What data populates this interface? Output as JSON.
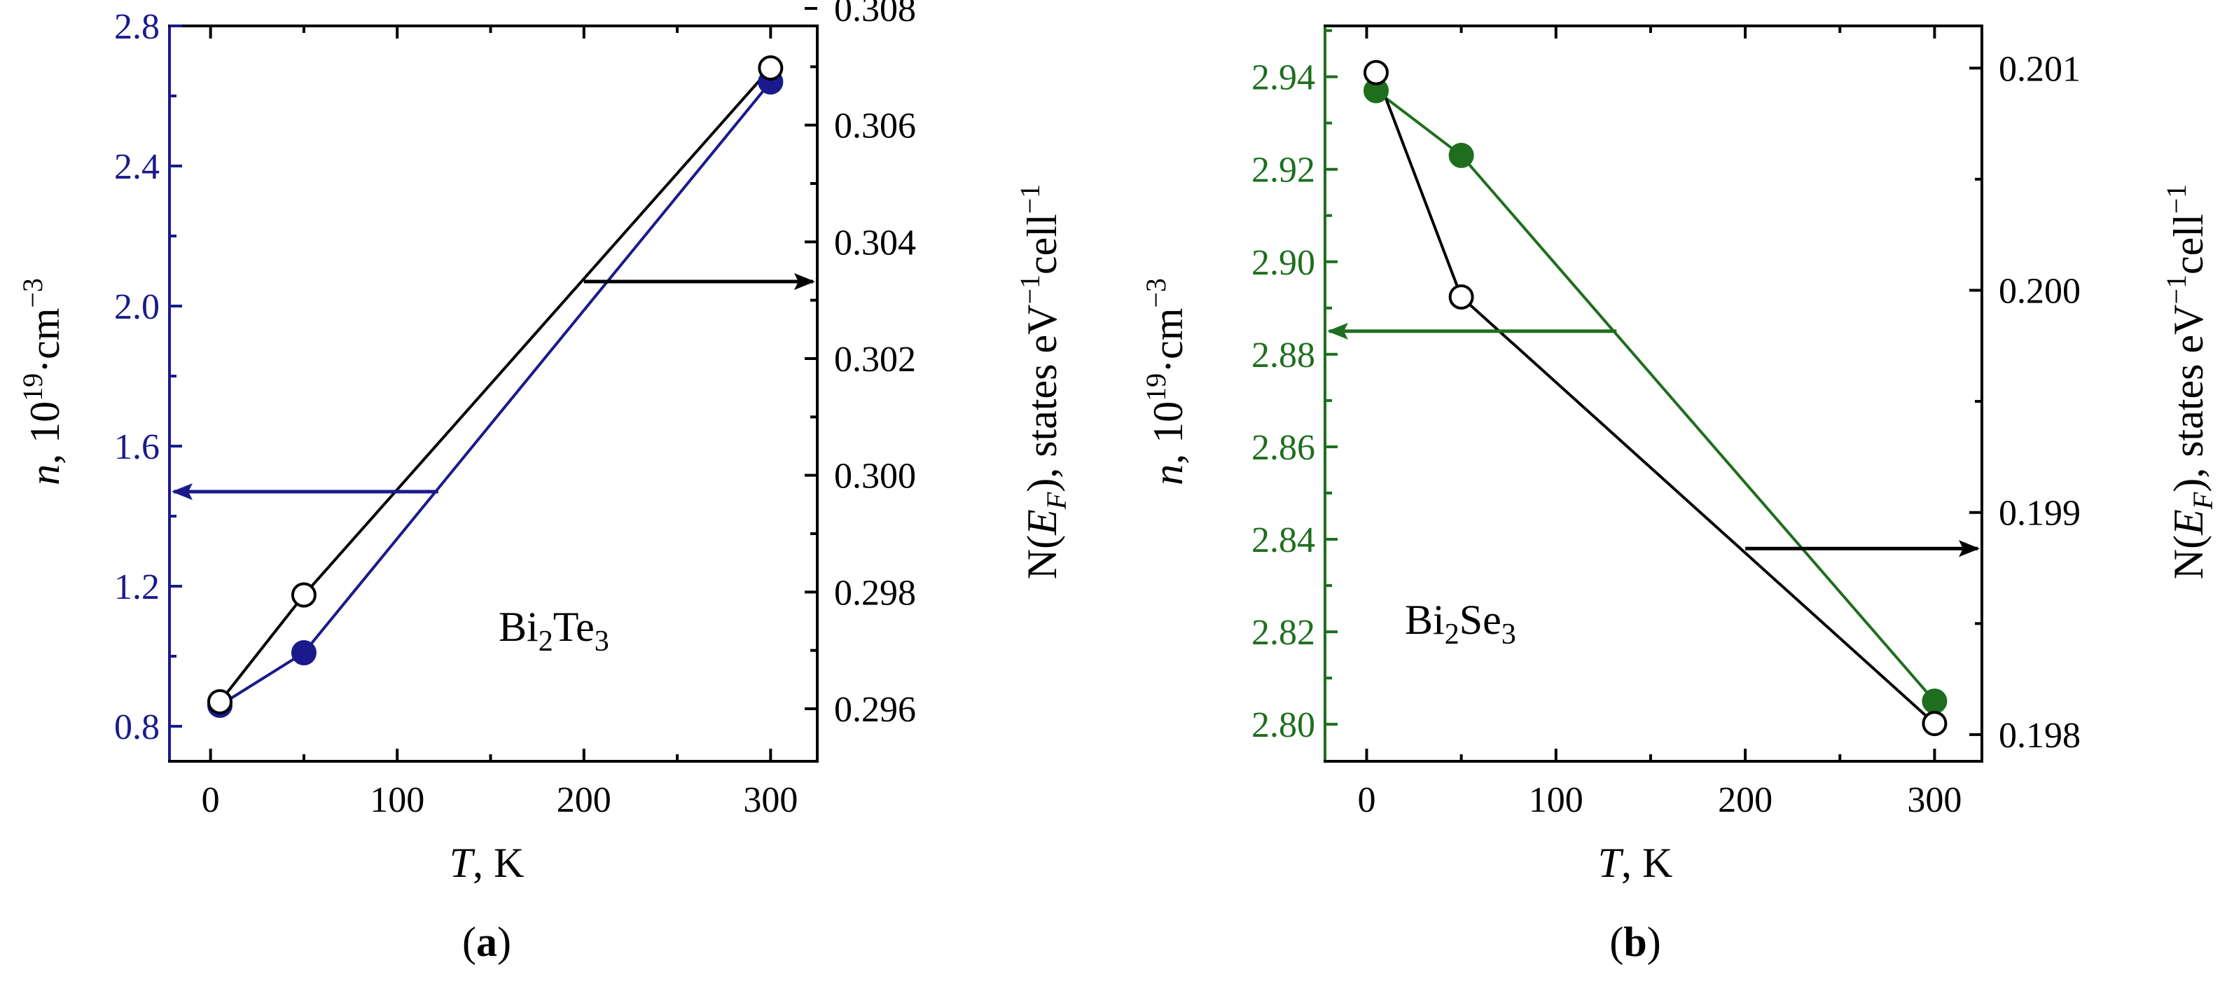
{
  "chart_data": [
    {
      "type": "line",
      "panel_label": "(a)",
      "caption": {
        "open": "(",
        "letter": "a",
        "close": ")"
      },
      "material": {
        "base": "Bi",
        "sub1": "2",
        "mid": "Te",
        "sub2": "3"
      },
      "colors": {
        "left": "#1a1a8c",
        "right": "#000000"
      },
      "x": {
        "label_var": "T",
        "label_unit": ", K",
        "range": [
          -22,
          325
        ],
        "ticks": [
          0,
          100,
          200,
          300
        ],
        "tick_labels": [
          "0",
          "100",
          "200",
          "300"
        ]
      },
      "y_left": {
        "label_var": "n",
        "label_mid": ", 10",
        "label_exp": "19",
        "label_unit": "·cm",
        "label_exp2": "−3",
        "range": [
          0.7,
          2.8
        ],
        "ticks": [
          0.8,
          1.2,
          1.6,
          2.0,
          2.4,
          2.8
        ],
        "tick_labels": [
          "0.8",
          "1.2",
          "1.6",
          "2.0",
          "2.4",
          "2.8"
        ]
      },
      "y_right": {
        "label_a": "N(",
        "label_var": "E",
        "label_sub": "F",
        "label_b": "), states eV",
        "label_exp": "−1",
        "label_c": "cell",
        "label_exp2": "−1",
        "range": [
          0.2951,
          0.3077
        ],
        "ticks": [
          0.296,
          0.298,
          0.3,
          0.302,
          0.304,
          0.306,
          0.308
        ],
        "tick_labels": [
          "0.296",
          "0.298",
          "0.300",
          "0.302",
          "0.304",
          "0.306",
          "0.308"
        ]
      },
      "series": [
        {
          "name": "n (left axis)",
          "axis": "left",
          "marker": "filled",
          "x": [
            5,
            50,
            300
          ],
          "y": [
            0.86,
            1.01,
            2.64
          ]
        },
        {
          "name": "N(E_F) (right axis)",
          "axis": "right",
          "marker": "open",
          "x": [
            5,
            50,
            300
          ],
          "y": [
            0.29612,
            0.29795,
            0.30698
          ]
        }
      ],
      "arrows": [
        {
          "points_to": "left",
          "axis": "left",
          "x_from": 122,
          "y_at": 1.47
        },
        {
          "points_to": "right",
          "axis": "left",
          "x_from": 200,
          "y_at": 2.07
        }
      ]
    },
    {
      "type": "line",
      "panel_label": "(b)",
      "caption": {
        "open": "(",
        "letter": "b",
        "close": ")"
      },
      "material": {
        "base": "Bi",
        "sub1": "2",
        "mid": "Se",
        "sub2": "3"
      },
      "colors": {
        "left": "#1e6e1e",
        "right": "#000000"
      },
      "x": {
        "label_var": "T",
        "label_unit": ", K",
        "range": [
          -22,
          325
        ],
        "ticks": [
          0,
          100,
          200,
          300
        ],
        "tick_labels": [
          "0",
          "100",
          "200",
          "300"
        ]
      },
      "y_left": {
        "label_var": "n",
        "label_mid": ", 10",
        "label_exp": "19",
        "label_unit": "·cm",
        "label_exp2": "−3",
        "range": [
          2.792,
          2.951
        ],
        "ticks": [
          2.8,
          2.82,
          2.84,
          2.86,
          2.88,
          2.9,
          2.92,
          2.94
        ],
        "tick_labels": [
          "2.80",
          "2.82",
          "2.84",
          "2.86",
          "2.88",
          "2.90",
          "2.92",
          "2.94"
        ]
      },
      "y_right": {
        "label_a": "N(",
        "label_var": "E",
        "label_sub": "F",
        "label_b": "), states eV",
        "label_exp": "−1",
        "label_c": "cell",
        "label_exp2": "−1",
        "range": [
          0.19788,
          0.20119
        ],
        "ticks": [
          0.198,
          0.199,
          0.2,
          0.201
        ],
        "tick_labels": [
          "0.198",
          "0.199",
          "0.200",
          "0.201"
        ]
      },
      "series": [
        {
          "name": "n (left axis)",
          "axis": "left",
          "marker": "filled",
          "x": [
            5,
            50,
            300
          ],
          "y": [
            2.937,
            2.923,
            2.805
          ]
        },
        {
          "name": "N(E_F) (right axis)",
          "axis": "right",
          "marker": "open",
          "x": [
            5,
            50,
            300
          ],
          "y": [
            0.20098,
            0.19997,
            0.19805
          ]
        }
      ],
      "arrows": [
        {
          "points_to": "left",
          "axis": "left",
          "x_from": 132,
          "y_at": 2.885
        },
        {
          "points_to": "right",
          "axis": "left",
          "x_from": 200,
          "y_at": 2.838
        }
      ]
    }
  ]
}
